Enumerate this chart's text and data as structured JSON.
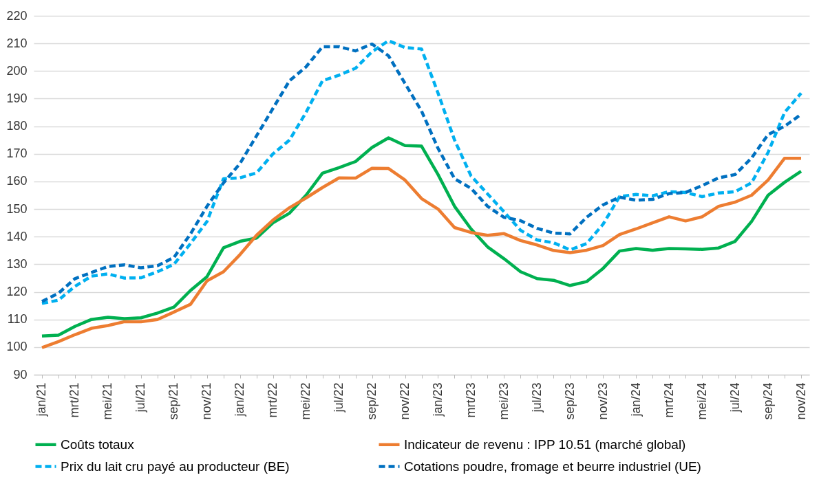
{
  "chart_data": {
    "type": "line",
    "categories": [
      "jan/21",
      null,
      "mrt/21",
      null,
      "mei/21",
      null,
      "jul/21",
      null,
      "sep/21",
      null,
      "nov/21",
      null,
      "jan/22",
      null,
      "mrt/22",
      null,
      "mei/22",
      null,
      "jul/22",
      null,
      "sep/22",
      null,
      "nov/22",
      null,
      "jan/23",
      null,
      "mrt/23",
      null,
      "mei/23",
      null,
      "jul/23",
      null,
      "sep/23",
      null,
      "nov/23",
      null,
      "jan/24",
      null,
      "mrt/24",
      null,
      "mei/24",
      null,
      "jul/24",
      null,
      "sep/24",
      null,
      "nov/24"
    ],
    "series": [
      {
        "name": "Coûts totaux",
        "color": "#00b050",
        "line_style": "solid",
        "values": [
          104,
          104.3,
          107.5,
          110,
          110.8,
          110.3,
          110.6,
          112.3,
          114.5,
          120.5,
          125.5,
          136,
          138.3,
          139.5,
          145,
          148.5,
          155,
          163,
          165,
          167.2,
          172.3,
          175.8,
          173,
          172.8,
          162.5,
          151,
          142.8,
          136.3,
          132,
          127.3,
          124.8,
          124.2,
          122.3,
          123.7,
          128.5,
          134.8,
          135.7,
          135.1,
          135.7,
          135.6,
          135.4,
          135.9,
          138.3,
          145.5,
          155,
          159.7,
          163.7
        ]
      },
      {
        "name": "Indicateur de revenu : IPP 10.51 (marché global)",
        "color": "#ed7d31",
        "line_style": "solid",
        "values": [
          99.8,
          102,
          104.5,
          106.8,
          107.8,
          109.2,
          109.2,
          110,
          112.7,
          115.5,
          124,
          127.3,
          133.5,
          140.5,
          146,
          150.5,
          154,
          157.8,
          161.3,
          161.2,
          164.8,
          164.7,
          160.5,
          153.8,
          150,
          143.3,
          141.5,
          140.5,
          141.1,
          138.6,
          137,
          135,
          134.2,
          135.1,
          136.8,
          140.8,
          142.8,
          145,
          147.2,
          145.7,
          147.2,
          151,
          152.5,
          155,
          160.5,
          168.4,
          168.4
        ]
      },
      {
        "name": "Prix du lait cru payé au producteur (BE)",
        "color": "#00b0f0",
        "line_style": "dashed",
        "values": [
          115.8,
          117,
          122,
          125.7,
          126.5,
          125,
          125.1,
          127.3,
          130,
          137.5,
          145.5,
          161,
          161.3,
          163.1,
          170,
          175,
          185,
          196.5,
          198.5,
          201,
          207,
          211,
          208.5,
          208,
          192,
          175,
          162,
          155.5,
          149,
          142.3,
          138.8,
          137.8,
          135.2,
          137.5,
          144.5,
          154.5,
          155.3,
          154.8,
          156.3,
          156,
          154.5,
          155.8,
          156.3,
          159.5,
          170.5,
          185,
          192
        ]
      },
      {
        "name": "Cotations poudre, fromage et beurre industriel (UE)",
        "color": "#0070c0",
        "line_style": "dashed",
        "values": [
          116.5,
          119.5,
          124.8,
          127,
          129.2,
          129.8,
          128.7,
          129.5,
          132.5,
          141,
          151,
          159.5,
          166.5,
          176.5,
          186.5,
          196.5,
          201.5,
          208.8,
          208.8,
          207.3,
          209.8,
          205.5,
          195.5,
          185.5,
          172,
          161,
          157.5,
          151,
          147,
          145.8,
          143,
          141.3,
          141,
          147,
          151.5,
          154.3,
          153.2,
          153.5,
          155.6,
          156,
          158.5,
          161.3,
          162.5,
          168.5,
          177,
          180,
          184.3
        ]
      }
    ],
    "ylim": [
      90,
      220
    ],
    "yticks": [
      90,
      100,
      110,
      120,
      130,
      140,
      150,
      160,
      170,
      180,
      190,
      200,
      210,
      220
    ],
    "grid": "y",
    "legend": "bottom"
  }
}
